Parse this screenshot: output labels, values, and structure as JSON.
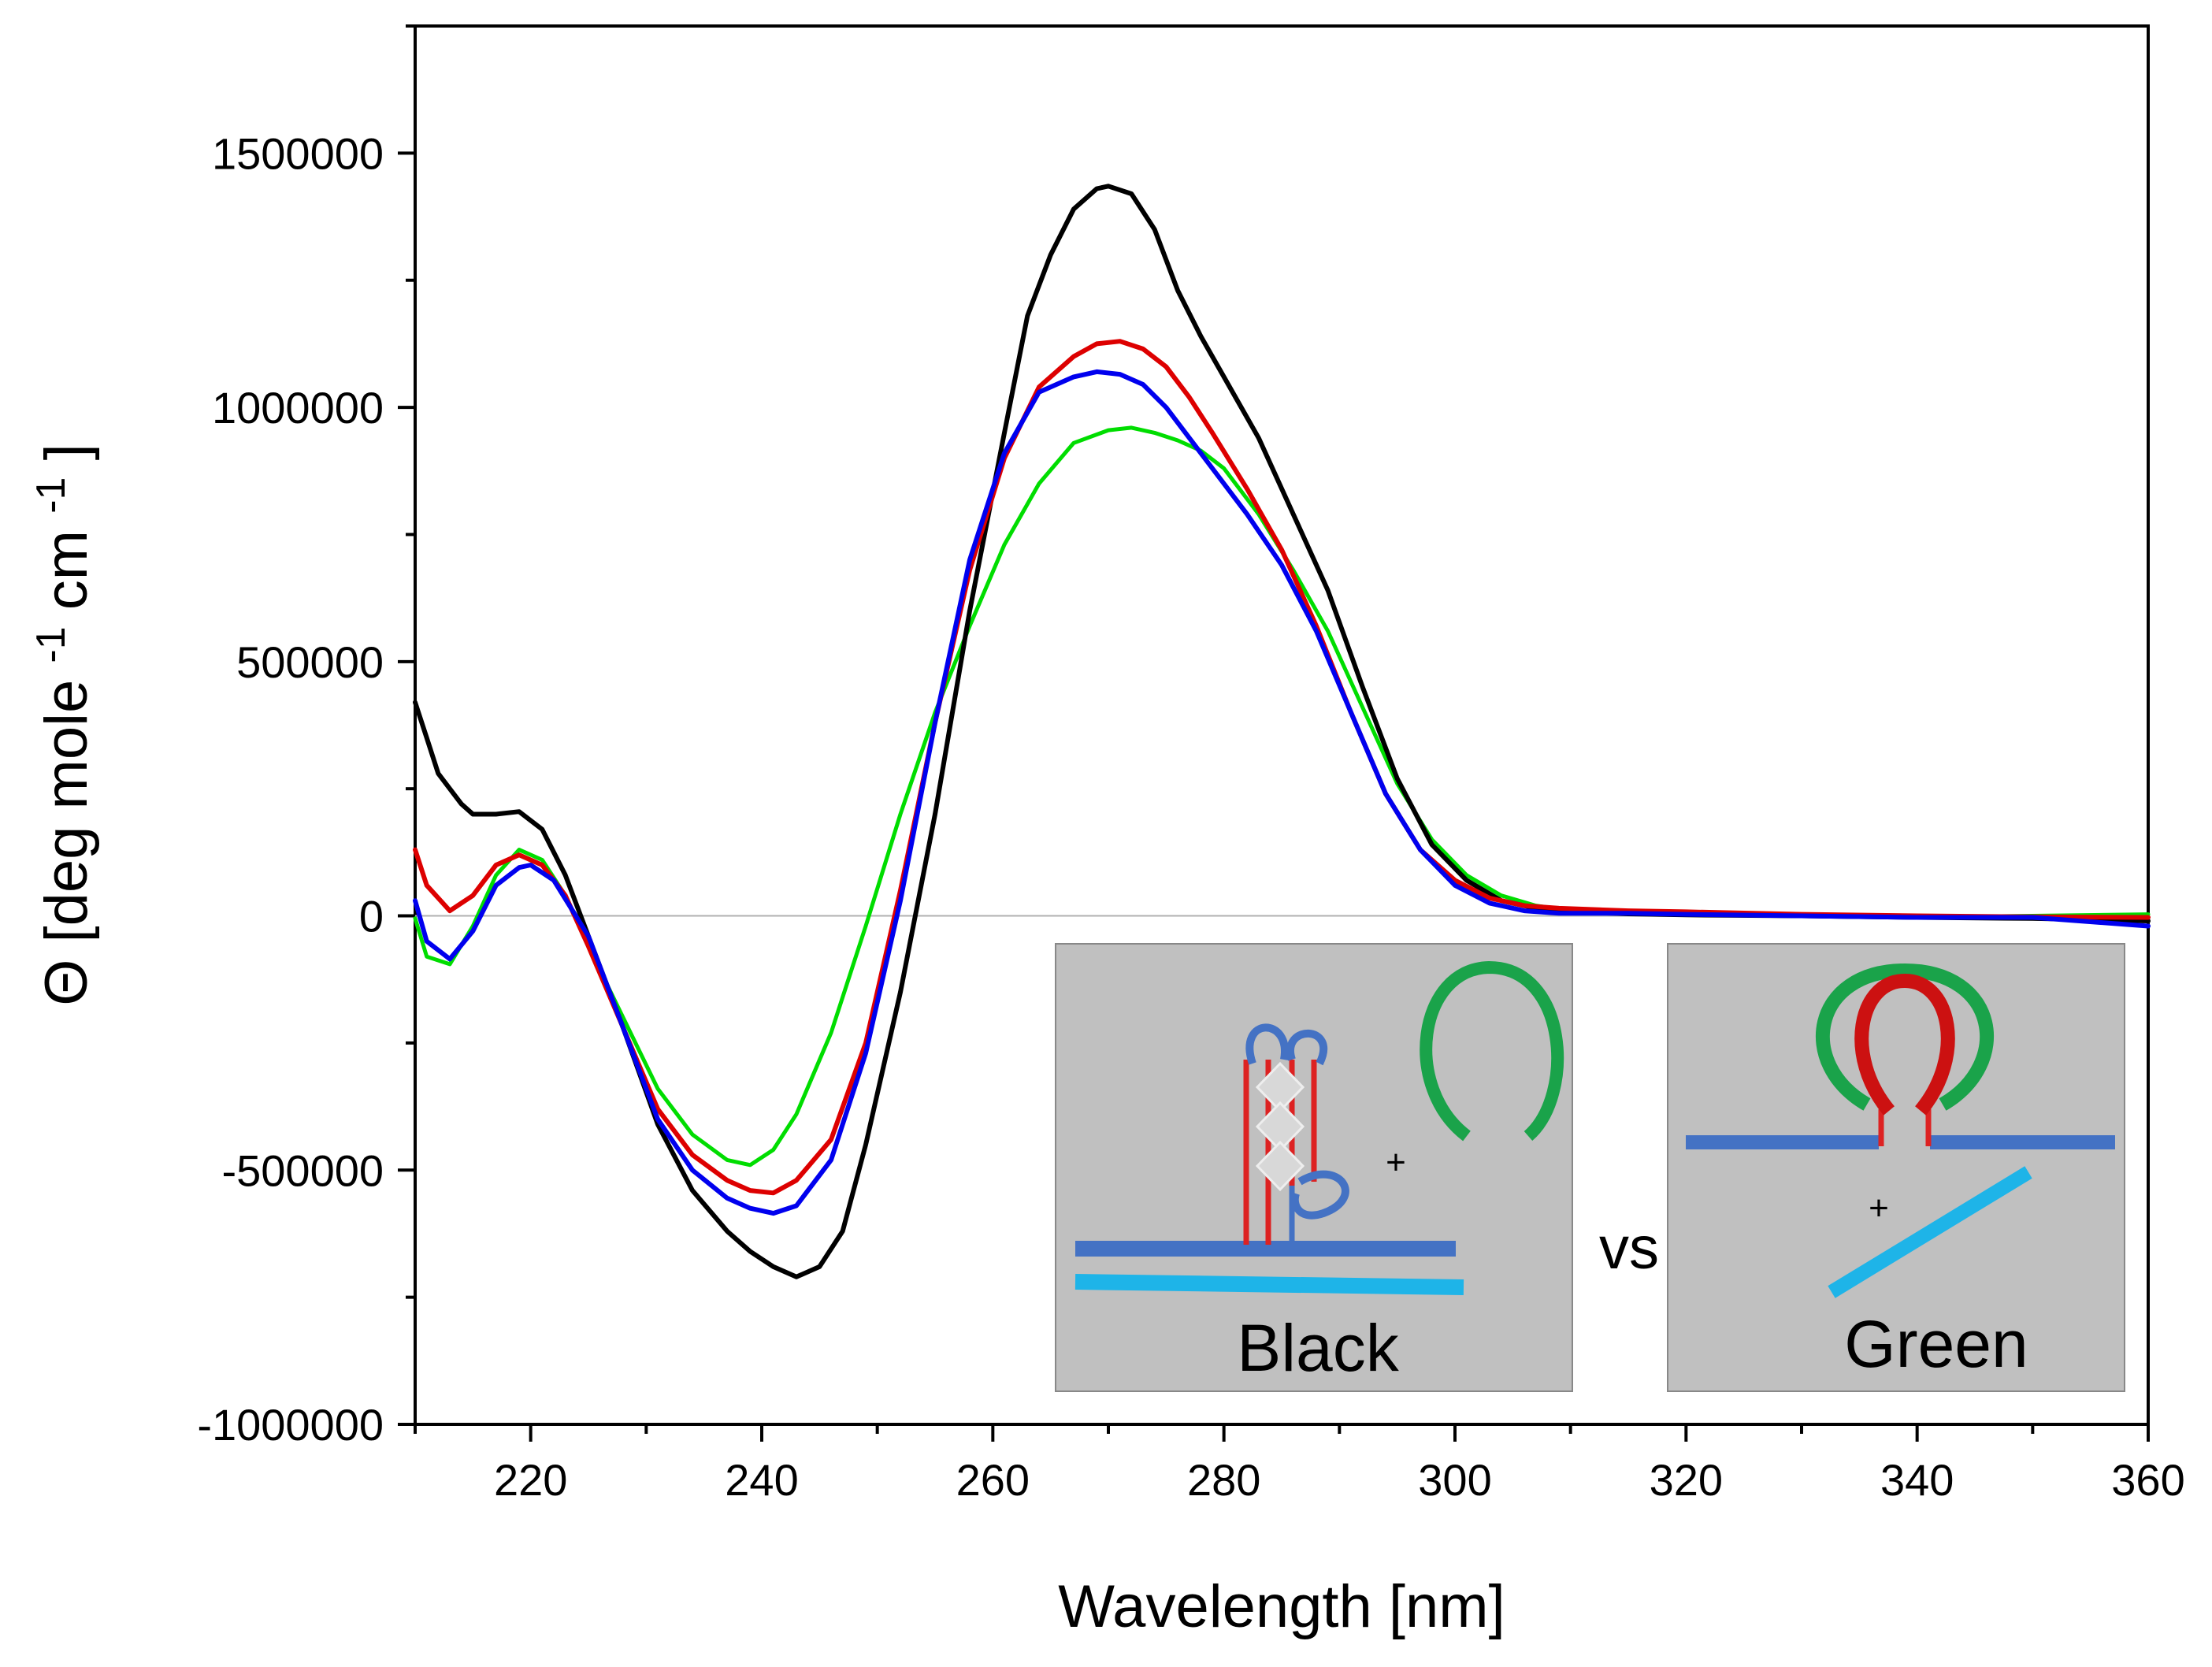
{
  "chart_data": {
    "type": "line",
    "title": "",
    "xlabel": "Wavelength [nm]",
    "ylabel_parts": [
      "Θ [deg mole",
      "-1",
      " cm",
      "-1",
      "]"
    ],
    "xlim": [
      210,
      360
    ],
    "ylim": [
      -1000000,
      1750000
    ],
    "xticks": [
      220,
      240,
      260,
      280,
      300,
      320,
      340,
      360
    ],
    "yticks": [
      -1000000,
      -500000,
      0,
      500000,
      1000000,
      1500000
    ],
    "xtick_labels": [
      "220",
      "240",
      "260",
      "280",
      "300",
      "320",
      "340",
      "360"
    ],
    "ytick_labels": [
      "-1000000",
      "-500000",
      "0",
      "500000",
      "1000000",
      "1500000"
    ],
    "zero_line": true,
    "grid": false,
    "series": [
      {
        "color": "#00dd00",
        "x": [
          210,
          211,
          213,
          215,
          217,
          219,
          221,
          223,
          225,
          228,
          231,
          234,
          237,
          239,
          241,
          243,
          246,
          249,
          252,
          255,
          258,
          261,
          264,
          267,
          270,
          272,
          274,
          276,
          278,
          280,
          283,
          286,
          289,
          292,
          295,
          298,
          301,
          304,
          307,
          310,
          315,
          320,
          330,
          340,
          350,
          360
        ],
        "y": [
          -5000,
          -80000,
          -95000,
          -20000,
          80000,
          130000,
          110000,
          40000,
          -60000,
          -200000,
          -340000,
          -430000,
          -480000,
          -490000,
          -460000,
          -390000,
          -230000,
          -20000,
          200000,
          400000,
          570000,
          730000,
          850000,
          930000,
          955000,
          960000,
          950000,
          935000,
          915000,
          880000,
          790000,
          680000,
          560000,
          410000,
          260000,
          150000,
          80000,
          40000,
          20000,
          10000,
          5000,
          3000,
          0,
          -3000,
          0,
          3000
        ]
      },
      {
        "color": "#000000",
        "x": [
          210,
          211,
          212,
          213,
          214,
          215,
          217,
          219,
          221,
          223,
          225,
          228,
          231,
          234,
          237,
          239,
          241,
          243,
          245,
          247,
          249,
          252,
          255,
          258,
          261,
          263,
          265,
          267,
          269,
          270,
          272,
          274,
          276,
          278,
          280,
          283,
          286,
          289,
          292,
          295,
          298,
          301,
          304,
          307,
          310,
          315,
          320,
          330,
          340,
          350,
          360
        ],
        "y": [
          420000,
          350000,
          280000,
          250000,
          220000,
          200000,
          200000,
          205000,
          170000,
          80000,
          -40000,
          -220000,
          -410000,
          -540000,
          -620000,
          -660000,
          -690000,
          -710000,
          -690000,
          -620000,
          -450000,
          -150000,
          200000,
          600000,
          950000,
          1180000,
          1300000,
          1390000,
          1430000,
          1435000,
          1420000,
          1350000,
          1230000,
          1140000,
          1060000,
          940000,
          790000,
          640000,
          450000,
          270000,
          140000,
          70000,
          30000,
          15000,
          8000,
          4000,
          2000,
          0,
          -3000,
          -5000,
          -10000
        ]
      },
      {
        "color": "#dd0000",
        "x": [
          210,
          211,
          213,
          215,
          217,
          219,
          221,
          223,
          225,
          228,
          231,
          234,
          237,
          239,
          241,
          243,
          246,
          249,
          252,
          255,
          258,
          261,
          264,
          267,
          269,
          271,
          273,
          275,
          277,
          279,
          282,
          285,
          288,
          291,
          294,
          297,
          300,
          303,
          306,
          309,
          315,
          320,
          330,
          340,
          350,
          360
        ],
        "y": [
          130000,
          60000,
          10000,
          40000,
          100000,
          120000,
          100000,
          40000,
          -60000,
          -220000,
          -380000,
          -470000,
          -520000,
          -540000,
          -545000,
          -520000,
          -440000,
          -250000,
          50000,
          380000,
          680000,
          900000,
          1040000,
          1100000,
          1125000,
          1130000,
          1115000,
          1080000,
          1020000,
          950000,
          840000,
          720000,
          570000,
          400000,
          240000,
          130000,
          70000,
          35000,
          20000,
          15000,
          10000,
          8000,
          3000,
          0,
          -2000,
          -3000
        ]
      },
      {
        "color": "#0000ee",
        "x": [
          210,
          211,
          213,
          215,
          217,
          219,
          220,
          222,
          225,
          228,
          231,
          234,
          237,
          239,
          241,
          243,
          246,
          249,
          252,
          255,
          258,
          261,
          264,
          267,
          269,
          271,
          273,
          275,
          277,
          279,
          282,
          285,
          288,
          291,
          294,
          297,
          300,
          303,
          306,
          309,
          315,
          320,
          330,
          340,
          350,
          360
        ],
        "y": [
          30000,
          -50000,
          -85000,
          -30000,
          60000,
          95000,
          100000,
          70000,
          -40000,
          -220000,
          -400000,
          -500000,
          -555000,
          -575000,
          -585000,
          -570000,
          -480000,
          -270000,
          30000,
          380000,
          700000,
          910000,
          1030000,
          1060000,
          1070000,
          1065000,
          1045000,
          1000000,
          940000,
          880000,
          790000,
          690000,
          560000,
          400000,
          240000,
          130000,
          60000,
          25000,
          10000,
          5000,
          5000,
          3000,
          0,
          -3000,
          -3000,
          -20000
        ]
      }
    ],
    "insets": [
      {
        "label": "Black"
      },
      {
        "label": "Green"
      }
    ],
    "inset_separator": "vs",
    "plus_signs": [
      "+",
      "+"
    ]
  },
  "colors": {
    "inset_bg": "#c0c0c0",
    "strand_dark_blue": "#4472c4",
    "strand_light_blue": "#1eb4e8",
    "loop_green": "#1aa34a",
    "loop_red": "#cc1111"
  }
}
